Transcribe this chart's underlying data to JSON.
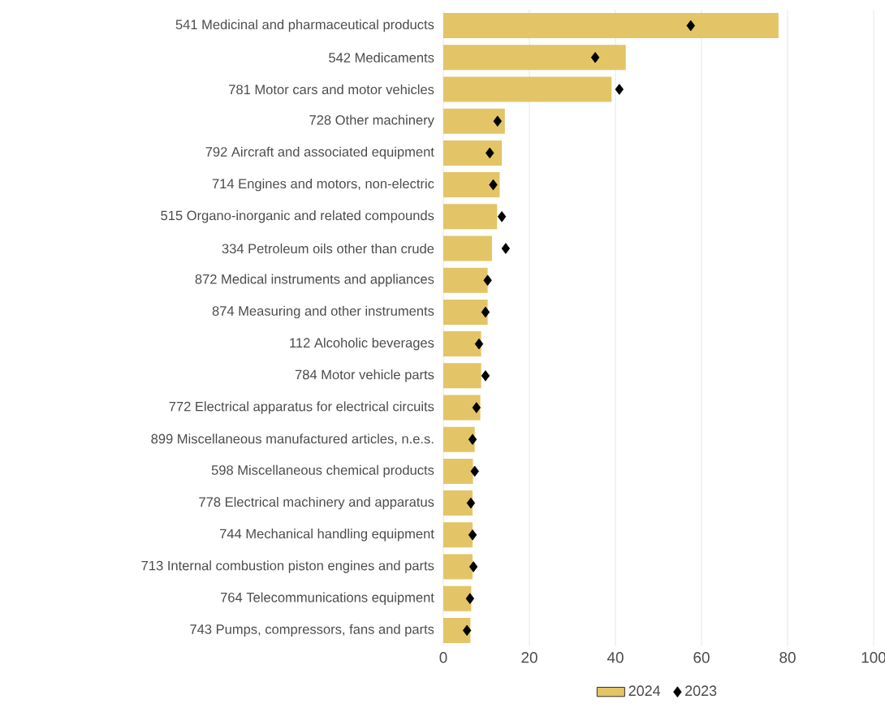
{
  "chart_data": {
    "type": "bar",
    "orientation": "horizontal",
    "categories": [
      "541 Medicinal and pharmaceutical products",
      "542 Medicaments",
      "781 Motor cars and motor vehicles",
      "728 Other machinery",
      "792 Aircraft and associated equipment",
      "714 Engines and motors, non-electric",
      "515 Organo-inorganic and related compounds",
      "334 Petroleum oils other than crude",
      "872 Medical instruments and appliances",
      "874 Measuring and other instruments",
      "112 Alcoholic beverages",
      "784 Motor vehicle parts",
      "772 Electrical apparatus for electrical circuits",
      "899 Miscellaneous manufactured articles, n.e.s.",
      "598 Miscellaneous chemical products",
      "778 Electrical machinery and apparatus",
      "744 Mechanical handling equipment",
      "713 Internal combustion piston engines and parts",
      "764 Telecommunications equipment",
      "743 Pumps, compressors, fans and parts"
    ],
    "series": [
      {
        "name": "2024",
        "color": "#e3c567",
        "values": [
          77.9,
          42.4,
          39.1,
          14.3,
          13.6,
          13.1,
          12.5,
          11.3,
          10.3,
          10.3,
          8.8,
          8.8,
          8.6,
          7.3,
          6.9,
          6.8,
          6.8,
          6.8,
          6.5,
          6.3
        ]
      },
      {
        "name": "2023",
        "type": "scatter",
        "color": "#000000",
        "values": [
          57.5,
          35.3,
          40.9,
          12.6,
          10.8,
          11.6,
          13.6,
          14.5,
          10.3,
          9.8,
          8.3,
          9.8,
          7.7,
          6.8,
          7.3,
          6.4,
          6.8,
          7.0,
          6.2,
          5.5
        ]
      }
    ],
    "xlim": [
      0,
      100
    ],
    "xticks": [
      0,
      20,
      40,
      60,
      80,
      100
    ],
    "grid": "x",
    "legend": "bottom",
    "marker": "diamond"
  }
}
